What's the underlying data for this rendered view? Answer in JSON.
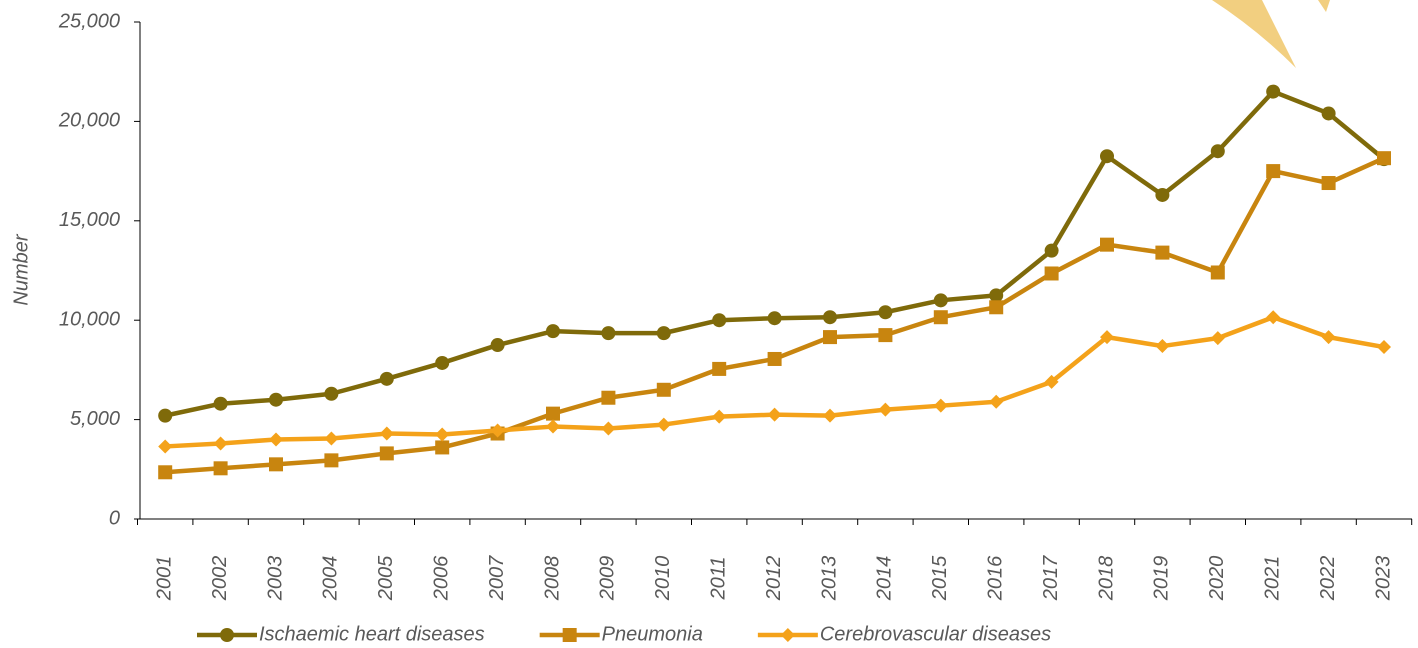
{
  "chart_data": {
    "type": "line",
    "y_label": "Number",
    "categories": [
      "2001",
      "2002",
      "2003",
      "2004",
      "2005",
      "2006",
      "2007",
      "2008",
      "2009",
      "2010",
      "2011",
      "2012",
      "2013",
      "2014",
      "2015",
      "2016",
      "2017",
      "2018",
      "2019",
      "2020",
      "2021",
      "2022",
      "2023"
    ],
    "series": [
      {
        "name": "Ischaemic heart diseases",
        "color": "#7f6a0a",
        "marker": "circle",
        "values": [
          5200,
          5800,
          6000,
          6300,
          7050,
          7850,
          8750,
          9450,
          9350,
          9350,
          10000,
          10100,
          10150,
          10400,
          11000,
          11250,
          13500,
          18250,
          16300,
          18500,
          21500,
          20400,
          18100
        ]
      },
      {
        "name": "Pneumonia",
        "color": "#c8850f",
        "marker": "square",
        "values": [
          2350,
          2550,
          2750,
          2950,
          3300,
          3600,
          4300,
          5300,
          6100,
          6500,
          7550,
          8050,
          9150,
          9250,
          10150,
          10650,
          12350,
          13800,
          13400,
          12400,
          17500,
          16900,
          18150
        ]
      },
      {
        "name": "Cerebrovascular diseases",
        "color": "#f4a21a",
        "marker": "diamond",
        "values": [
          3650,
          3800,
          4000,
          4050,
          4300,
          4250,
          4450,
          4650,
          4550,
          4750,
          5150,
          5250,
          5200,
          5500,
          5700,
          5900,
          6900,
          9150,
          8700,
          9100,
          10150,
          9150,
          8650
        ]
      }
    ],
    "ylim": [
      0,
      25000
    ],
    "yticks": [
      0,
      {
        "value": 5000,
        "label": "5,000"
      },
      {
        "value": 10000,
        "label": "10,000"
      },
      {
        "value": 15000,
        "label": "15,000"
      },
      {
        "value": 20000,
        "label": "20,000"
      },
      {
        "value": 25000,
        "label": "25,000"
      }
    ],
    "grid": false,
    "legend": "bottom"
  }
}
